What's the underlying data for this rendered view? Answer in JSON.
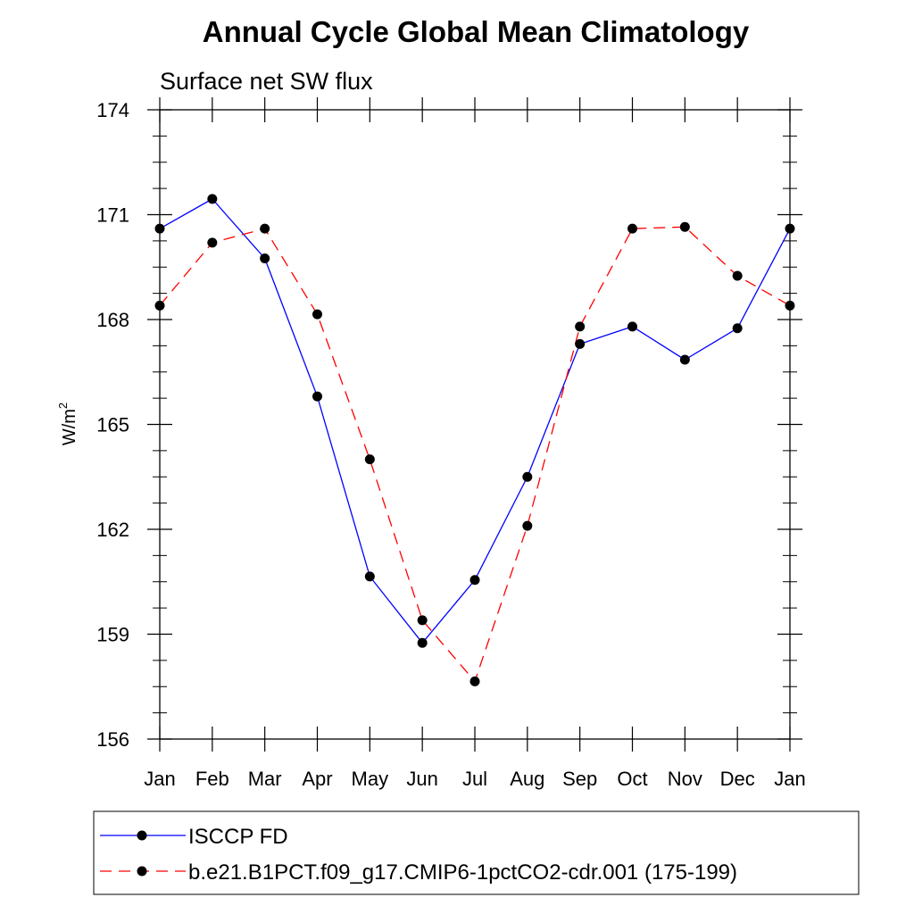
{
  "chart_data": {
    "type": "line",
    "title": "Annual Cycle Global Mean Climatology",
    "subtitle": "Surface net SW flux",
    "ylabel": "W/m",
    "ylabel_superscript": "2",
    "categories": [
      "Jan",
      "Feb",
      "Mar",
      "Apr",
      "May",
      "Jun",
      "Jul",
      "Aug",
      "Sep",
      "Oct",
      "Nov",
      "Dec",
      "Jan"
    ],
    "ylim": [
      156,
      174
    ],
    "yticks": [
      156,
      159,
      162,
      165,
      168,
      171,
      174
    ],
    "grid": false,
    "legend_position": "bottom",
    "series": [
      {
        "name": "ISCCP FD",
        "color": "#0000ff",
        "dash": "solid",
        "values": [
          170.6,
          171.45,
          169.75,
          165.8,
          160.65,
          158.75,
          160.55,
          163.5,
          167.3,
          167.8,
          166.85,
          167.75,
          170.6
        ]
      },
      {
        "name": "b.e21.B1PCT.f09_g17.CMIP6-1pctCO2-cdr.001 (175-199)",
        "color": "#ff0000",
        "dash": "dashed",
        "values": [
          168.4,
          170.2,
          170.6,
          168.15,
          164.0,
          159.4,
          157.65,
          162.1,
          167.8,
          170.6,
          170.65,
          169.25,
          168.4
        ]
      }
    ]
  }
}
